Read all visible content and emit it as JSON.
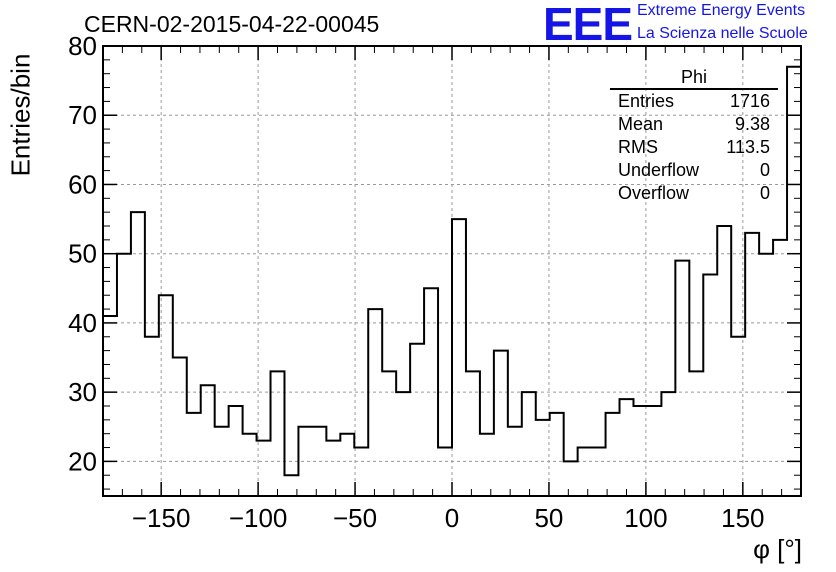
{
  "title": "CERN-02-2015-04-22-00045",
  "logo": {
    "mark": "EEE",
    "line1": "Extreme Energy Events",
    "line2": "La Scienza nelle Scuole",
    "color": "#1515e6"
  },
  "stats": {
    "title": "Phi",
    "rows": [
      {
        "label": "Entries",
        "value": "1716"
      },
      {
        "label": "Mean",
        "value": "9.38"
      },
      {
        "label": "RMS",
        "value": "113.5"
      },
      {
        "label": "Underflow",
        "value": "0"
      },
      {
        "label": "Overflow",
        "value": "0"
      }
    ]
  },
  "chart_data": {
    "type": "bar",
    "style": "step-histogram",
    "xlabel": "φ [°]",
    "ylabel": "Entries/bin",
    "xlim": [
      -180,
      180
    ],
    "ylim": [
      15,
      80
    ],
    "bin_width": 7.2,
    "xticks": [
      -150,
      -100,
      -50,
      0,
      50,
      100,
      150
    ],
    "xtick_labels": [
      "−150",
      "−100",
      "−50",
      "0",
      "50",
      "100",
      "150"
    ],
    "yticks": [
      20,
      30,
      40,
      50,
      60,
      70,
      80
    ],
    "grid": true,
    "values": [
      41,
      50,
      56,
      38,
      44,
      35,
      27,
      31,
      25,
      28,
      24,
      23,
      33,
      18,
      25,
      25,
      23,
      24,
      22,
      42,
      33,
      30,
      37,
      45,
      22,
      55,
      33,
      24,
      36,
      25,
      30,
      26,
      27,
      20,
      22,
      22,
      27,
      29,
      28,
      28,
      30,
      49,
      33,
      47,
      54,
      38,
      53,
      50,
      52,
      77
    ]
  }
}
